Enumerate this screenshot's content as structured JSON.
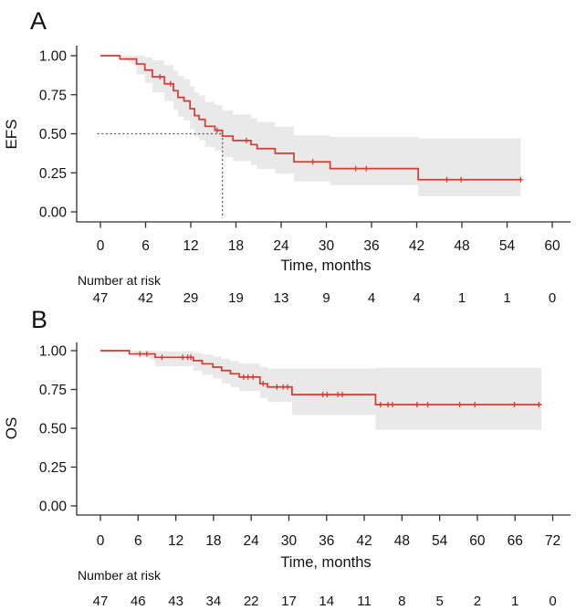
{
  "figure": {
    "description": "Kaplan-Meier survival curves with 95% confidence bands and number-at-risk tables",
    "panels_count": 2
  },
  "colors": {
    "curve": "#d9392f",
    "band": "#e9e9e9",
    "axis": "#2e2e2e",
    "text": "#111111",
    "median_line": "#5a5a5a",
    "background": "#ffffff"
  },
  "chart_data": [
    {
      "type": "line",
      "subtype": "kaplan-meier-step",
      "panel_label": "A",
      "ylabel": "EFS",
      "xlabel": "Time, months",
      "risk_label": "Number at risk",
      "xticks": [
        0,
        6,
        12,
        18,
        24,
        30,
        36,
        42,
        48,
        54,
        60
      ],
      "yticks": [
        1.0,
        0.75,
        0.5,
        0.25,
        0.0
      ],
      "ytick_labels": [
        "1.00",
        "0.75",
        "0.50",
        "0.25",
        "0.00"
      ],
      "xlim": [
        0,
        62
      ],
      "ylim": [
        0,
        1
      ],
      "grid": false,
      "legend": false,
      "number_at_risk": [
        47,
        42,
        29,
        19,
        13,
        9,
        4,
        4,
        1,
        1,
        0
      ],
      "median_survival": {
        "time": 16.2,
        "level": 0.5
      },
      "series": [
        {
          "name": "EFS",
          "step_times": [
            0,
            2.6,
            4.8,
            5.9,
            6.9,
            8.5,
            9.7,
            10.3,
            11.1,
            11.9,
            12.5,
            13.1,
            13.9,
            15.2,
            16.2,
            17.6,
            20.0,
            20.8,
            23.2,
            25.7,
            30.5,
            42.2
          ],
          "step_values": [
            1.0,
            0.979,
            0.947,
            0.908,
            0.865,
            0.82,
            0.776,
            0.733,
            0.71,
            0.66,
            0.616,
            0.592,
            0.548,
            0.522,
            0.485,
            0.457,
            0.431,
            0.405,
            0.375,
            0.32,
            0.277,
            0.206
          ],
          "end_time": 55.8,
          "censor_times": [
            7.9,
            9.3,
            15.5,
            19.4,
            28.2,
            33.9,
            35.3,
            46.0,
            47.9,
            55.8
          ]
        }
      ],
      "confidence_band": {
        "times": [
          2.6,
          4.8,
          5.9,
          6.9,
          8.5,
          9.7,
          10.3,
          11.1,
          11.9,
          12.5,
          13.1,
          13.9,
          15.2,
          16.2,
          17.6,
          20.0,
          20.8,
          23.2,
          25.7,
          30.5,
          42.2
        ],
        "upper": [
          1.0,
          1.0,
          0.99,
          0.97,
          0.94,
          0.905,
          0.87,
          0.85,
          0.805,
          0.765,
          0.745,
          0.705,
          0.685,
          0.65,
          0.625,
          0.6,
          0.575,
          0.545,
          0.49,
          0.48,
          0.47
        ],
        "lower": [
          0.935,
          0.88,
          0.825,
          0.765,
          0.71,
          0.655,
          0.61,
          0.585,
          0.53,
          0.485,
          0.46,
          0.415,
          0.39,
          0.35,
          0.325,
          0.3,
          0.275,
          0.245,
          0.195,
          0.17,
          0.1
        ],
        "end_time": 55.8
      }
    },
    {
      "type": "line",
      "subtype": "kaplan-meier-step",
      "panel_label": "B",
      "ylabel": "OS",
      "xlabel": "Time, months",
      "risk_label": "Number at risk",
      "xticks": [
        0,
        6,
        12,
        18,
        24,
        30,
        36,
        42,
        48,
        54,
        60,
        66,
        72
      ],
      "yticks": [
        1.0,
        0.75,
        0.5,
        0.25,
        0.0
      ],
      "ytick_labels": [
        "1.00",
        "0.75",
        "0.50",
        "0.25",
        "0.00"
      ],
      "xlim": [
        0,
        74
      ],
      "ylim": [
        0,
        1
      ],
      "grid": false,
      "legend": false,
      "number_at_risk": [
        47,
        46,
        43,
        34,
        22,
        17,
        14,
        11,
        8,
        5,
        2,
        1,
        0
      ],
      "median_survival": null,
      "series": [
        {
          "name": "OS",
          "step_times": [
            0,
            4.6,
            8.7,
            14.8,
            16.2,
            17.9,
            19.3,
            20.7,
            22.1,
            25.4,
            26.6,
            30.5,
            43.8
          ],
          "step_values": [
            1.0,
            0.979,
            0.957,
            0.936,
            0.915,
            0.894,
            0.872,
            0.851,
            0.83,
            0.787,
            0.766,
            0.717,
            0.652
          ],
          "end_time": 70.2,
          "censor_times": [
            6.3,
            7.4,
            9.8,
            13.1,
            13.9,
            14.4,
            22.8,
            23.5,
            24.3,
            25.9,
            28.1,
            29.1,
            29.8,
            35.4,
            36.1,
            37.8,
            38.5,
            44.6,
            45.8,
            46.5,
            50.4,
            52.1,
            57.2,
            59.6,
            65.9,
            69.8
          ]
        }
      ],
      "confidence_band": {
        "times": [
          4.6,
          8.7,
          14.8,
          16.2,
          17.9,
          19.3,
          20.7,
          22.1,
          25.4,
          26.6,
          30.5,
          43.8
        ],
        "upper": [
          1.0,
          0.995,
          0.985,
          0.975,
          0.962,
          0.948,
          0.933,
          0.918,
          0.895,
          0.885,
          0.885,
          0.89
        ],
        "lower": [
          0.935,
          0.9,
          0.87,
          0.845,
          0.82,
          0.79,
          0.765,
          0.74,
          0.695,
          0.67,
          0.585,
          0.49
        ],
        "end_time": 70.2
      }
    }
  ]
}
